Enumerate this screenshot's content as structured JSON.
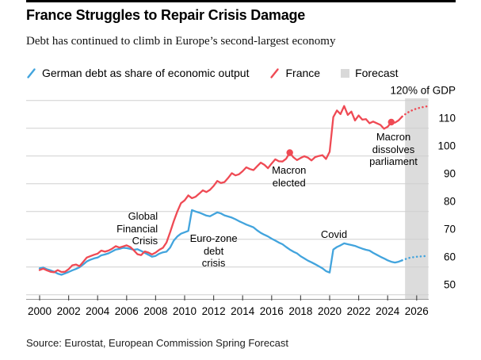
{
  "header": {
    "title": "France Struggles to Repair Crisis Damage",
    "subtitle": "Debt has continued to climb in Europe’s second-largest economy"
  },
  "legend": {
    "items": [
      {
        "label": "German debt as share of economic output",
        "type": "line",
        "color": "#42A4DD"
      },
      {
        "label": "France",
        "type": "line",
        "color": "#EF4A54"
      },
      {
        "label": "Forecast",
        "type": "box",
        "color": "#D9D9D9"
      }
    ]
  },
  "source": "Source: Eurostat, European Commission Spring Forecast",
  "chart_data": {
    "type": "line",
    "title": "France Struggles to Repair Crisis Damage",
    "unit_label": "120% of GDP",
    "ylabel": "% of GDP",
    "xlabel": "",
    "grid": true,
    "legend_position": "top",
    "ylim": [
      48.5,
      121
    ],
    "xlim": [
      1999.1,
      2027
    ],
    "y_gridlines": [
      50,
      60,
      70,
      80,
      90,
      100,
      110,
      120
    ],
    "x_ticks": [
      2000,
      2002,
      2004,
      2006,
      2008,
      2010,
      2012,
      2014,
      2016,
      2018,
      2020,
      2022,
      2024,
      2026
    ],
    "forecast_band": {
      "x_start": 2025.2,
      "x_end": 2026.8,
      "color": "#DCDCDC"
    },
    "series": [
      {
        "name": "German debt as share of economic output",
        "color": "#42A4DD",
        "x_start": 2000.0,
        "x_step": 0.25,
        "values": [
          59.5,
          59.8,
          59.2,
          58.8,
          58.3,
          57.6,
          57.2,
          57.7,
          58.2,
          58.8,
          59.3,
          59.9,
          60.9,
          62.0,
          62.6,
          63.1,
          63.4,
          64.2,
          64.5,
          64.9,
          65.6,
          66.3,
          66.5,
          66.9,
          66.8,
          66.5,
          66.2,
          66.4,
          65.8,
          65.1,
          64.4,
          63.7,
          64.0,
          64.8,
          65.3,
          65.5,
          67.0,
          69.5,
          71.0,
          72.0,
          72.5,
          73.0,
          80.5,
          80.0,
          79.6,
          79.1,
          78.5,
          78.3,
          79.0,
          79.7,
          79.3,
          78.6,
          78.2,
          77.8,
          77.2,
          76.5,
          75.9,
          75.3,
          74.8,
          74.3,
          73.2,
          72.3,
          71.6,
          71.0,
          70.2,
          69.5,
          68.8,
          68.2,
          67.2,
          66.3,
          65.5,
          64.9,
          63.9,
          63.1,
          62.3,
          61.7,
          61.0,
          60.3,
          59.5,
          58.5,
          58.0,
          66.3,
          67.2,
          67.8,
          68.5,
          68.2,
          67.9,
          67.6,
          67.1,
          66.6,
          66.2,
          65.9,
          65.1,
          64.4,
          63.7,
          63.1,
          62.4,
          61.9,
          61.6,
          61.9,
          62.4
        ],
        "forecast": {
          "x_start": 2025.0,
          "x_step": 0.25,
          "values": [
            62.4,
            62.9,
            63.3,
            63.5,
            63.7,
            63.8,
            63.9,
            64.0
          ]
        }
      },
      {
        "name": "France",
        "color": "#EF4A54",
        "x_start": 2000.0,
        "x_step": 0.25,
        "values": [
          58.9,
          59.4,
          58.8,
          58.3,
          58.1,
          58.9,
          58.2,
          58.3,
          59.2,
          60.6,
          60.9,
          60.3,
          61.8,
          63.4,
          63.9,
          64.4,
          64.8,
          65.9,
          65.5,
          65.9,
          66.6,
          67.5,
          67.0,
          67.4,
          67.8,
          67.2,
          66.0,
          64.6,
          64.3,
          65.6,
          65.2,
          64.5,
          65.2,
          66.2,
          66.9,
          68.8,
          72.5,
          76.5,
          80.0,
          83.0,
          84.0,
          85.8,
          84.8,
          85.3,
          86.4,
          87.6,
          87.0,
          87.8,
          89.2,
          91.0,
          90.3,
          90.6,
          92.1,
          93.8,
          93.0,
          93.4,
          94.5,
          95.9,
          95.3,
          94.9,
          96.3,
          97.6,
          96.8,
          95.6,
          97.3,
          98.8,
          98.1,
          98.0,
          99.0,
          101.2,
          99.5,
          98.5,
          99.3,
          99.9,
          99.4,
          98.4,
          99.6,
          100.0,
          100.3,
          98.9,
          101.5,
          114.0,
          116.4,
          115.1,
          118.0,
          114.8,
          116.0,
          112.8,
          114.6,
          113.1,
          113.3,
          111.8,
          112.4,
          111.8,
          111.2,
          109.8,
          110.5,
          112.2,
          112.0,
          112.8,
          114.2
        ],
        "forecast": {
          "x_start": 2025.0,
          "x_step": 0.25,
          "values": [
            114.2,
            115.2,
            116.0,
            116.6,
            117.1,
            117.4,
            117.7,
            117.9
          ]
        }
      }
    ],
    "markers": [
      {
        "series": "France",
        "x": 2017.25,
        "y": 101.2
      },
      {
        "series": "France",
        "x": 2024.25,
        "y": 112.2
      }
    ],
    "annotations": [
      {
        "lines": "Global\nFinancial\nCrisis",
        "x": 2008.15,
        "y_top": 80.5,
        "align": "right"
      },
      {
        "lines": "Euro-zone\ndebt\ncrisis",
        "x": 2012.0,
        "y_top": 72.5,
        "align": "center"
      },
      {
        "lines": "Macron\nelected",
        "x": 2017.2,
        "y_top": 97.0,
        "align": "center"
      },
      {
        "lines": "Covid",
        "x": 2020.3,
        "y_top": 73.9,
        "align": "center"
      },
      {
        "lines": "Macron\ndissolves\nparliament",
        "x": 2024.4,
        "y_top": 109.2,
        "align": "center"
      }
    ]
  }
}
